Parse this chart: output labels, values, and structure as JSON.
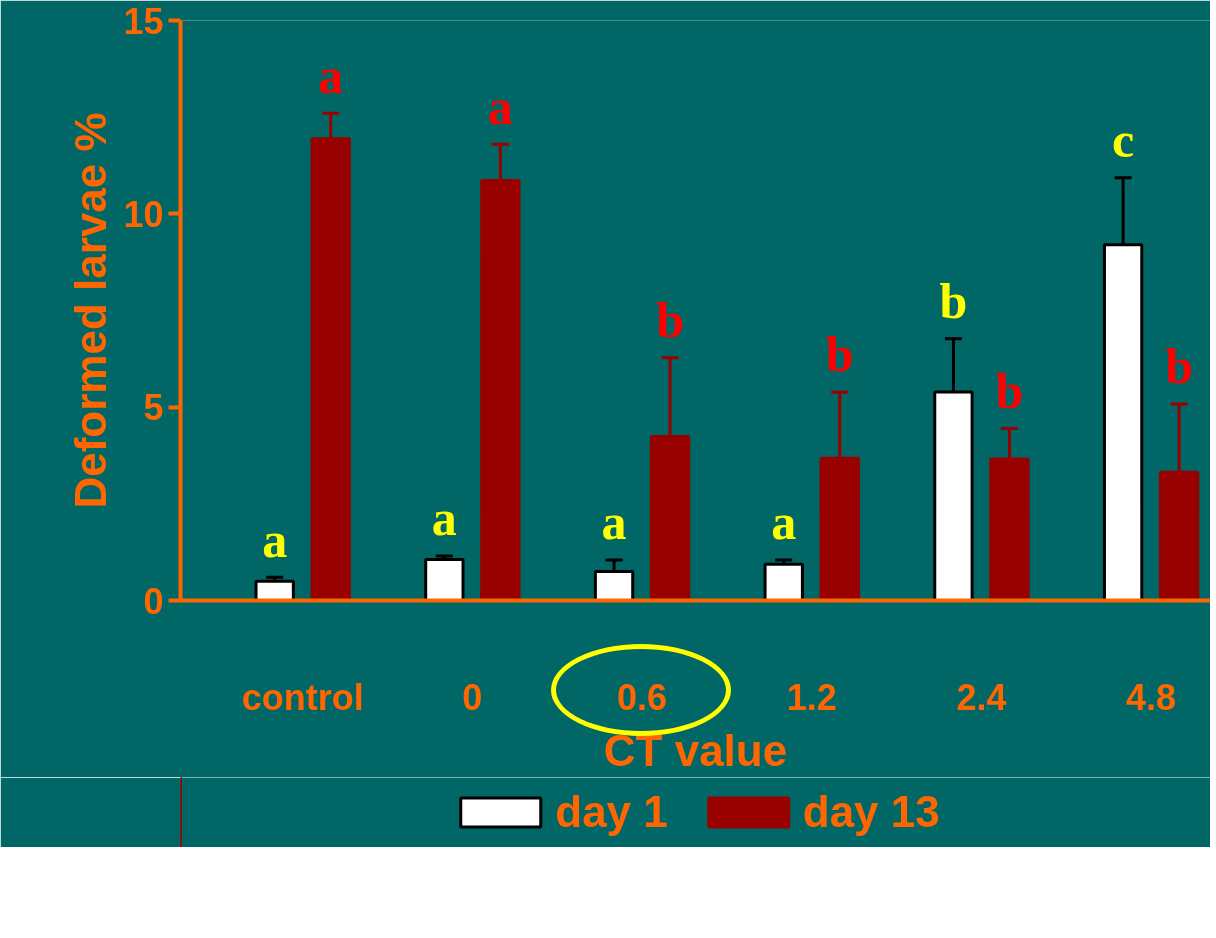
{
  "chart_data": {
    "type": "bar",
    "xlabel": "CT value",
    "ylabel": "Deformed larvae %",
    "categories": [
      "control",
      "0",
      "0.6",
      "1.2",
      "2.4",
      "4.8"
    ],
    "ylim": [
      0,
      15
    ],
    "yticks": [
      0,
      5,
      10,
      15
    ],
    "grid": false,
    "legend": "bottom",
    "series": [
      {
        "name": "day 1",
        "color": "#ffffff",
        "values": [
          0.5,
          1.06,
          0.75,
          0.94,
          5.39,
          9.2
        ],
        "errors": [
          [
            0.5,
            0.6
          ],
          [
            1.06,
            1.15
          ],
          [
            0.75,
            1.05
          ],
          [
            0.94,
            1.05
          ],
          [
            5.39,
            6.77
          ],
          [
            9.2,
            10.93
          ]
        ],
        "value_labels": [
          "a",
          "a",
          "a",
          "a",
          "b",
          "c"
        ]
      },
      {
        "name": "day 13",
        "color": "#990000",
        "values": [
          11.94,
          10.86,
          4.24,
          3.68,
          3.66,
          3.32
        ],
        "errors": [
          [
            11.94,
            12.6
          ],
          [
            10.86,
            11.8
          ],
          [
            4.24,
            6.28
          ],
          [
            3.68,
            5.39
          ],
          [
            3.66,
            4.45
          ],
          [
            3.32,
            5.08
          ]
        ],
        "value_labels": [
          "a",
          "a",
          "b",
          "b",
          "b",
          "b"
        ]
      }
    ]
  }
}
